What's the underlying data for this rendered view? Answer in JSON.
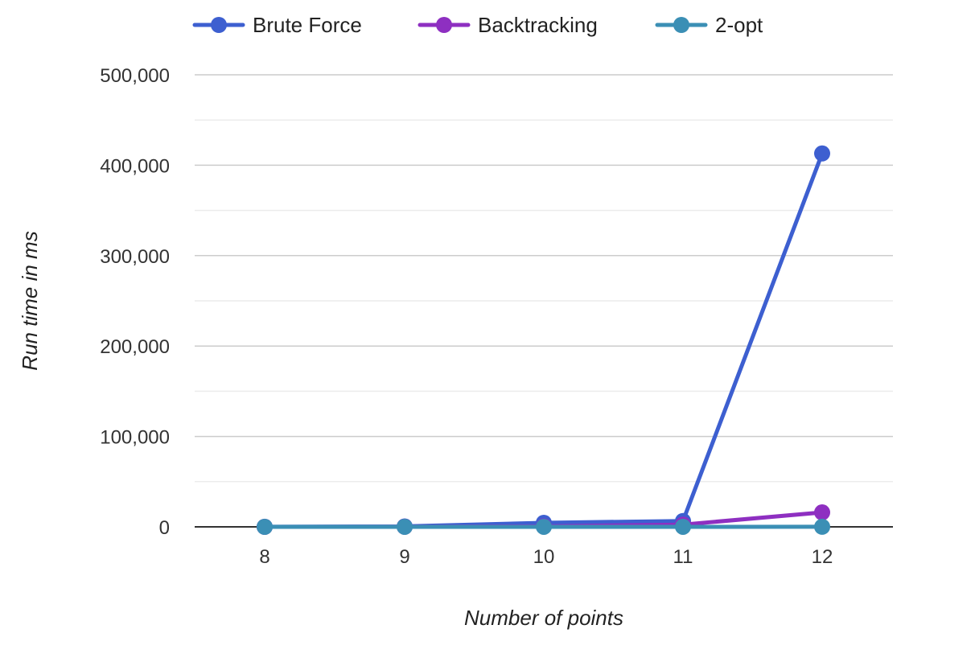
{
  "chart_data": {
    "type": "line",
    "title": "",
    "xlabel": "Number of points",
    "ylabel": "Run time in ms",
    "categories": [
      "8",
      "9",
      "10",
      "11",
      "12"
    ],
    "ylim": [
      0,
      500000
    ],
    "y_major_ticks": [
      0,
      100000,
      200000,
      300000,
      400000,
      500000
    ],
    "y_tick_labels": [
      "0",
      "100,000",
      "200,000",
      "300,000",
      "400,000",
      "500,000"
    ],
    "y_minor_ticks": [
      50000,
      150000,
      250000,
      350000,
      450000
    ],
    "grid": true,
    "legend_position": "top",
    "series": [
      {
        "name": "Brute Force",
        "color": "#3d5fd0",
        "values": [
          60,
          500,
          4500,
          6500,
          413000
        ]
      },
      {
        "name": "Backtracking",
        "color": "#8e2fc1",
        "values": [
          10,
          80,
          600,
          2500,
          16000
        ]
      },
      {
        "name": "2-opt",
        "color": "#3b8fb5",
        "values": [
          5,
          10,
          20,
          40,
          60
        ]
      }
    ]
  }
}
